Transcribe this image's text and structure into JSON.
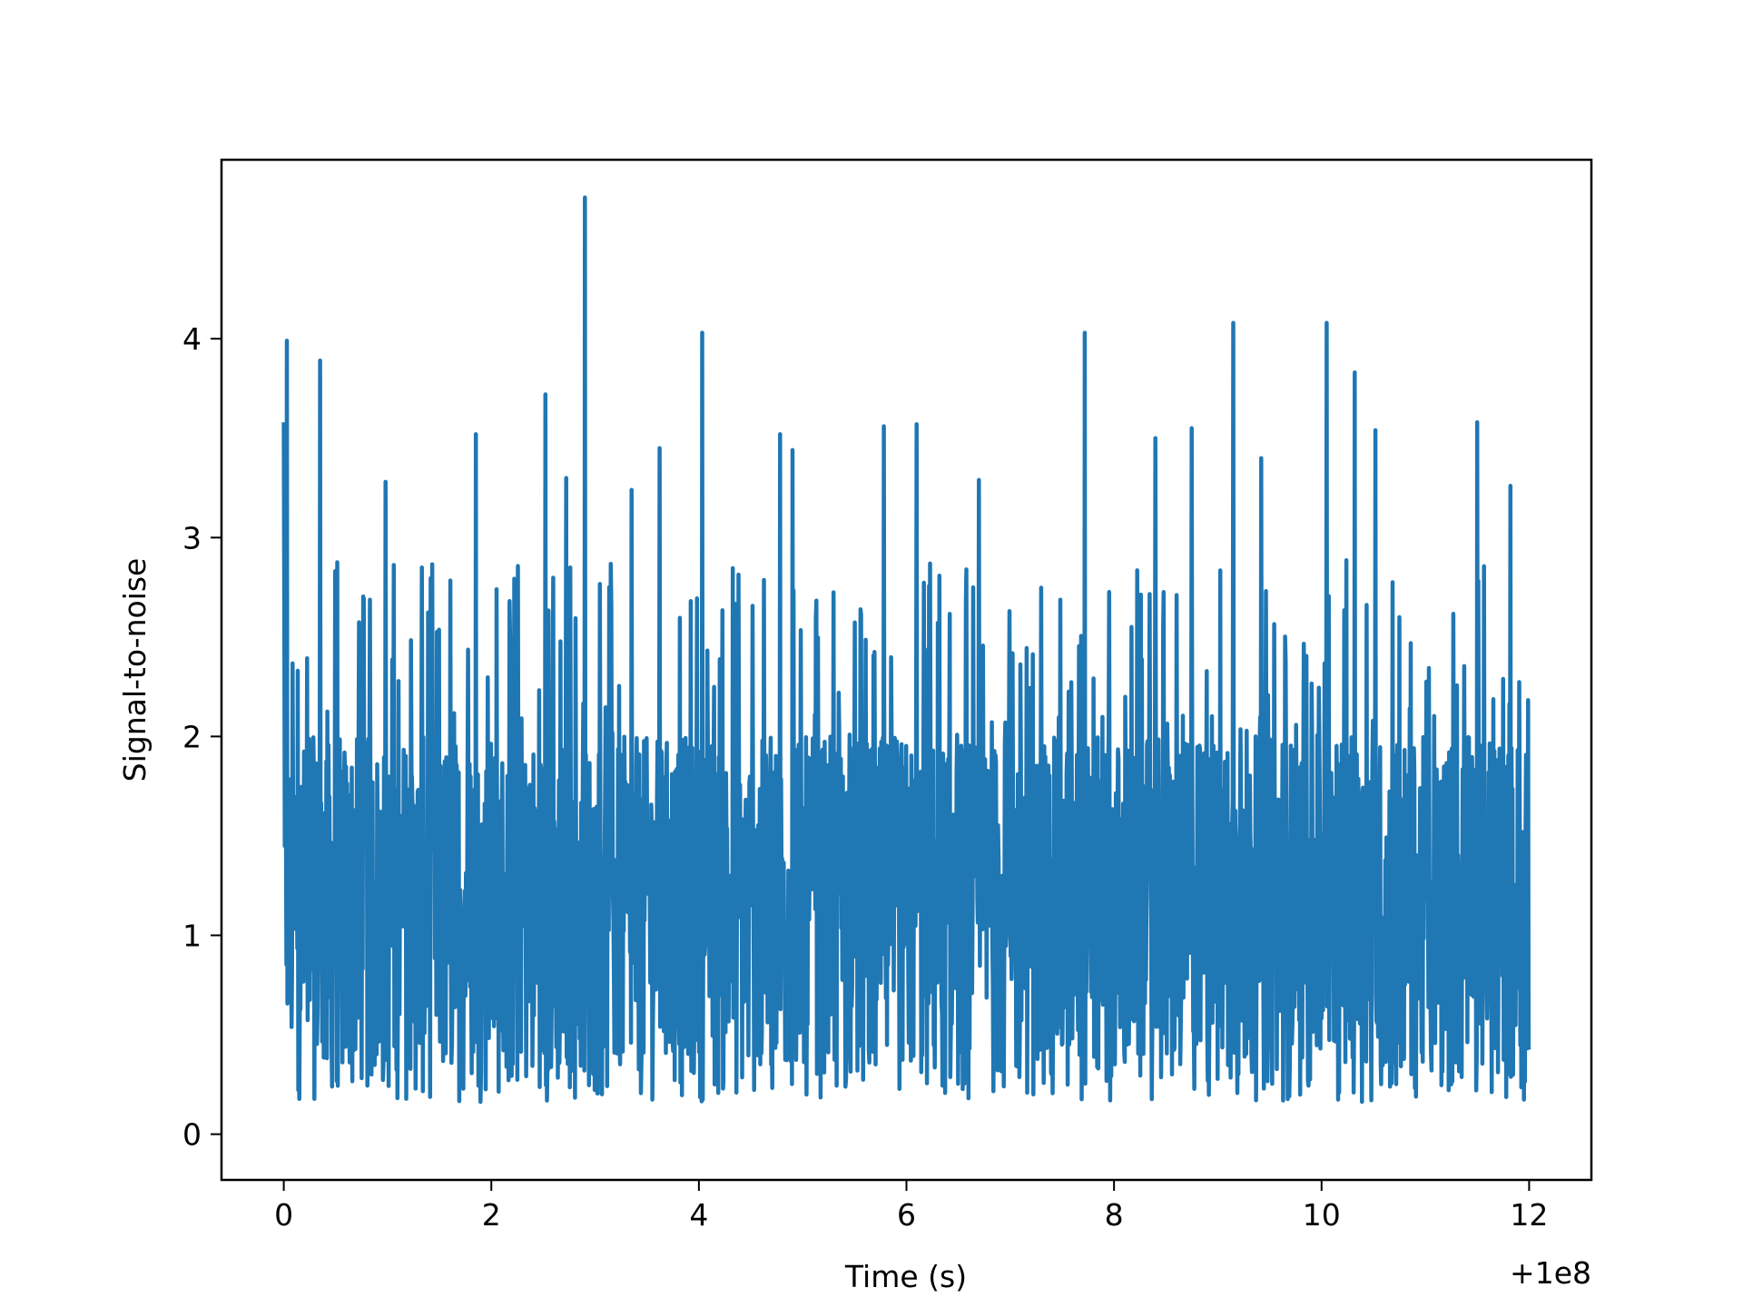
{
  "chart_data": {
    "type": "line",
    "xlabel": "Time (s)",
    "ylabel": "Signal-to-noise",
    "x_offset_label": "+1e8",
    "xlim": [
      -0.6,
      12.6
    ],
    "ylim": [
      -0.23,
      4.9
    ],
    "xticks": [
      0,
      2,
      4,
      6,
      8,
      10,
      12
    ],
    "yticks": [
      0,
      1,
      2,
      3,
      4
    ],
    "grid": false,
    "colors": {
      "series": "#1f77b4",
      "axes": "#000000",
      "background": "#ffffff"
    },
    "series": [
      {
        "x_range": [
          0,
          12
        ],
        "n_points": 2400,
        "baseline_min": 0.16,
        "baseline_max": 2.0,
        "peaks": [
          {
            "x": 0.0,
            "y": 3.58
          },
          {
            "x": 0.03,
            "y": 3.99
          },
          {
            "x": 0.35,
            "y": 3.89
          },
          {
            "x": 0.98,
            "y": 3.28
          },
          {
            "x": 1.33,
            "y": 2.85
          },
          {
            "x": 1.85,
            "y": 3.52
          },
          {
            "x": 2.52,
            "y": 3.72
          },
          {
            "x": 2.72,
            "y": 3.3
          },
          {
            "x": 2.9,
            "y": 4.71
          },
          {
            "x": 3.35,
            "y": 3.24
          },
          {
            "x": 3.62,
            "y": 3.45
          },
          {
            "x": 4.03,
            "y": 4.03
          },
          {
            "x": 4.78,
            "y": 3.52
          },
          {
            "x": 4.9,
            "y": 3.44
          },
          {
            "x": 5.78,
            "y": 3.56
          },
          {
            "x": 6.1,
            "y": 3.57
          },
          {
            "x": 6.7,
            "y": 3.29
          },
          {
            "x": 7.72,
            "y": 4.03
          },
          {
            "x": 8.4,
            "y": 3.5
          },
          {
            "x": 8.75,
            "y": 3.55
          },
          {
            "x": 9.15,
            "y": 4.08
          },
          {
            "x": 9.42,
            "y": 3.4
          },
          {
            "x": 10.05,
            "y": 4.08
          },
          {
            "x": 10.32,
            "y": 3.83
          },
          {
            "x": 10.52,
            "y": 3.54
          },
          {
            "x": 11.5,
            "y": 3.58
          },
          {
            "x": 11.82,
            "y": 3.26
          }
        ]
      }
    ]
  }
}
